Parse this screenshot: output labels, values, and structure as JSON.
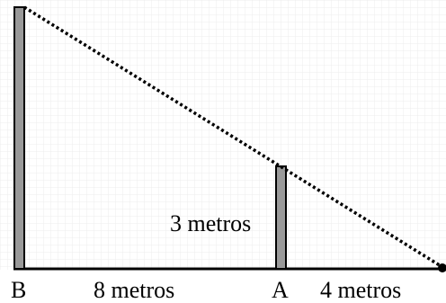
{
  "diagram": {
    "labels": {
      "point_b": "B",
      "point_a": "A",
      "pole_a_height": "3 metros",
      "distance_b_to_a": "8 metros",
      "distance_a_to_end": "4 metros"
    },
    "colors": {
      "pole_fill": "#999999",
      "line": "#000000",
      "grid": "#e6e6e6",
      "background": "#ffffff"
    }
  }
}
